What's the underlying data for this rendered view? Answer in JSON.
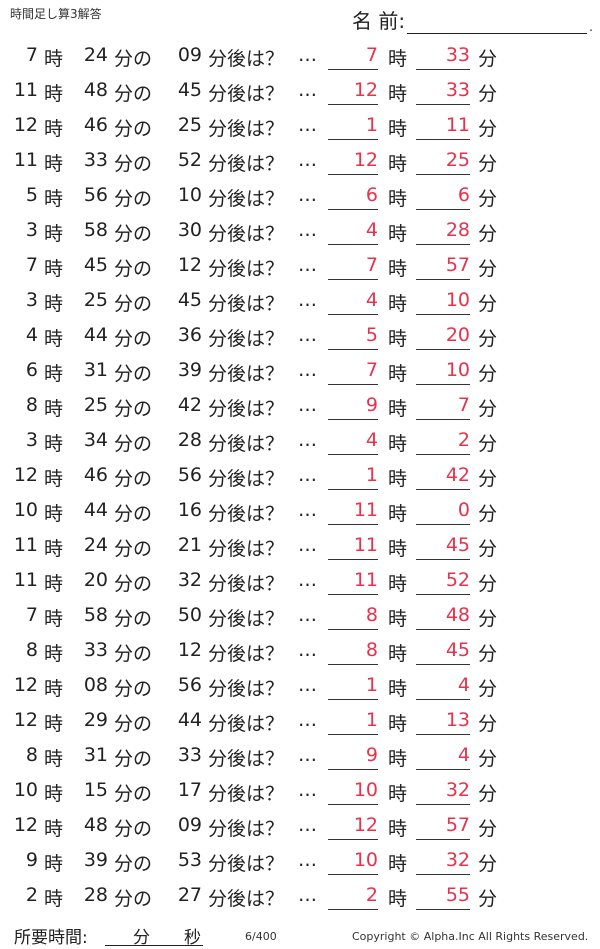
{
  "header": {
    "title": "時間足し算3解答",
    "name_label": "名 前:",
    "name_end": "."
  },
  "units": {
    "hour": "時",
    "minute_of": "分の",
    "after": "分後は？",
    "ellipsis": "…",
    "minute": "分"
  },
  "rows": [
    {
      "h": "7",
      "m": "24",
      "add": "09",
      "ah": "7",
      "am": "33"
    },
    {
      "h": "11",
      "m": "48",
      "add": "45",
      "ah": "12",
      "am": "33"
    },
    {
      "h": "12",
      "m": "46",
      "add": "25",
      "ah": "1",
      "am": "11"
    },
    {
      "h": "11",
      "m": "33",
      "add": "52",
      "ah": "12",
      "am": "25"
    },
    {
      "h": "5",
      "m": "56",
      "add": "10",
      "ah": "6",
      "am": "6"
    },
    {
      "h": "3",
      "m": "58",
      "add": "30",
      "ah": "4",
      "am": "28"
    },
    {
      "h": "7",
      "m": "45",
      "add": "12",
      "ah": "7",
      "am": "57"
    },
    {
      "h": "3",
      "m": "25",
      "add": "45",
      "ah": "4",
      "am": "10"
    },
    {
      "h": "4",
      "m": "44",
      "add": "36",
      "ah": "5",
      "am": "20"
    },
    {
      "h": "6",
      "m": "31",
      "add": "39",
      "ah": "7",
      "am": "10"
    },
    {
      "h": "8",
      "m": "25",
      "add": "42",
      "ah": "9",
      "am": "7"
    },
    {
      "h": "3",
      "m": "34",
      "add": "28",
      "ah": "4",
      "am": "2"
    },
    {
      "h": "12",
      "m": "46",
      "add": "56",
      "ah": "1",
      "am": "42"
    },
    {
      "h": "10",
      "m": "44",
      "add": "16",
      "ah": "11",
      "am": "0"
    },
    {
      "h": "11",
      "m": "24",
      "add": "21",
      "ah": "11",
      "am": "45"
    },
    {
      "h": "11",
      "m": "20",
      "add": "32",
      "ah": "11",
      "am": "52"
    },
    {
      "h": "7",
      "m": "58",
      "add": "50",
      "ah": "8",
      "am": "48"
    },
    {
      "h": "8",
      "m": "33",
      "add": "12",
      "ah": "8",
      "am": "45"
    },
    {
      "h": "12",
      "m": "08",
      "add": "56",
      "ah": "1",
      "am": "4"
    },
    {
      "h": "12",
      "m": "29",
      "add": "44",
      "ah": "1",
      "am": "13"
    },
    {
      "h": "8",
      "m": "31",
      "add": "33",
      "ah": "9",
      "am": "4"
    },
    {
      "h": "10",
      "m": "15",
      "add": "17",
      "ah": "10",
      "am": "32"
    },
    {
      "h": "12",
      "m": "48",
      "add": "09",
      "ah": "12",
      "am": "57"
    },
    {
      "h": "9",
      "m": "39",
      "add": "53",
      "ah": "10",
      "am": "32"
    },
    {
      "h": "2",
      "m": "28",
      "add": "27",
      "ah": "2",
      "am": "55"
    }
  ],
  "footer": {
    "time_label": "所要時間:",
    "min": "分",
    "sec": "秒",
    "page": "6/400",
    "copyright": "Copyright ©  Alpha.Inc All Rights Reserved."
  },
  "colors": {
    "answer": "#e8314a"
  }
}
